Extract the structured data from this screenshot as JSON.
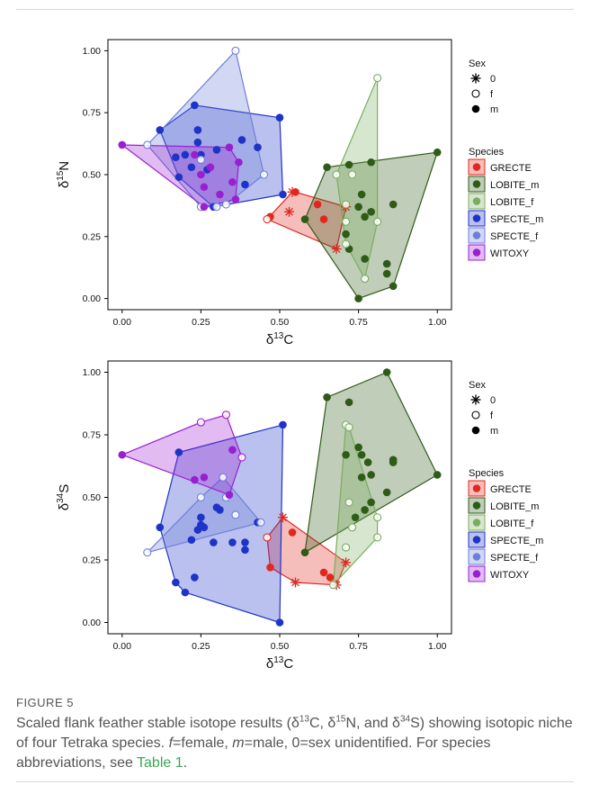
{
  "charts": [
    {
      "id": "top",
      "ylabel_base": "δ",
      "ylabel_sup": "15",
      "ylabel_elem": "N",
      "xlabel_base": "δ",
      "xlabel_sup": "13",
      "xlabel_elem": "C"
    },
    {
      "id": "bottom",
      "ylabel_base": "δ",
      "ylabel_sup": "34",
      "ylabel_elem": "S",
      "xlabel_base": "δ",
      "xlabel_sup": "13",
      "xlabel_elem": "C"
    }
  ],
  "x_ticks": [
    "0.00",
    "0.25",
    "0.50",
    "0.75",
    "1.00"
  ],
  "y_ticks": [
    "0.00",
    "0.25",
    "0.50",
    "0.75",
    "1.00"
  ],
  "legend": {
    "sex_title": "Sex",
    "sex_items": [
      {
        "symbol": "asterisk",
        "label": "0"
      },
      {
        "symbol": "open-circle",
        "label": "f"
      },
      {
        "symbol": "filled-circle",
        "label": "m"
      }
    ],
    "species_title": "Species",
    "species_items": [
      {
        "label": "GRECTE",
        "color": "#e0281e"
      },
      {
        "label": "LOBITE_m",
        "color": "#2e5b16"
      },
      {
        "label": "LOBITE_f",
        "color": "#79ad5e"
      },
      {
        "label": "SPECTE_m",
        "color": "#1e33c8"
      },
      {
        "label": "SPECTE_f",
        "color": "#6b7fd8"
      },
      {
        "label": "WITOXY",
        "color": "#9a1fd0"
      }
    ]
  },
  "chart_data": [
    {
      "type": "scatter",
      "xlabel": "δ13C",
      "ylabel": "δ15N",
      "xlim": [
        0,
        1
      ],
      "ylim": [
        0,
        1
      ],
      "series": [
        {
          "name": "GRECTE",
          "color": "#e0281e",
          "points": [
            [
              0.47,
              0.33,
              "m"
            ],
            [
              0.46,
              0.32,
              "f"
            ],
            [
              0.53,
              0.35,
              "0"
            ],
            [
              0.54,
              0.43,
              "0"
            ],
            [
              0.55,
              0.43,
              "m"
            ],
            [
              0.62,
              0.38,
              "m"
            ],
            [
              0.64,
              0.32,
              "m"
            ],
            [
              0.68,
              0.2,
              "0"
            ],
            [
              0.71,
              0.37,
              "0"
            ]
          ]
        },
        {
          "name": "LOBITE_m",
          "color": "#2e5b16",
          "points": [
            [
              0.58,
              0.32,
              "m"
            ],
            [
              0.65,
              0.53,
              "m"
            ],
            [
              0.72,
              0.54,
              "m"
            ],
            [
              0.71,
              0.26,
              "m"
            ],
            [
              0.72,
              0.2,
              "m"
            ],
            [
              0.75,
              0.37,
              "m"
            ],
            [
              0.76,
              0.42,
              "m"
            ],
            [
              0.77,
              0.33,
              "m"
            ],
            [
              0.77,
              0.16,
              "m"
            ],
            [
              0.79,
              0.55,
              "m"
            ],
            [
              0.79,
              0.35,
              "m"
            ],
            [
              0.84,
              0.14,
              "m"
            ],
            [
              0.84,
              0.1,
              "m"
            ],
            [
              0.86,
              0.38,
              "m"
            ],
            [
              0.86,
              0.05,
              "m"
            ],
            [
              1.0,
              0.59,
              "m"
            ],
            [
              0.75,
              0.0,
              "m"
            ]
          ]
        },
        {
          "name": "LOBITE_f",
          "color": "#79ad5e",
          "points": [
            [
              0.68,
              0.5,
              "f"
            ],
            [
              0.71,
              0.38,
              "f"
            ],
            [
              0.71,
              0.31,
              "f"
            ],
            [
              0.71,
              0.22,
              "f"
            ],
            [
              0.73,
              0.5,
              "f"
            ],
            [
              0.77,
              0.08,
              "f"
            ],
            [
              0.81,
              0.89,
              "f"
            ],
            [
              0.81,
              0.31,
              "f"
            ]
          ]
        },
        {
          "name": "SPECTE_m",
          "color": "#1e33c8",
          "points": [
            [
              0.12,
              0.68,
              "m"
            ],
            [
              0.17,
              0.57,
              "m"
            ],
            [
              0.18,
              0.49,
              "m"
            ],
            [
              0.2,
              0.58,
              "m"
            ],
            [
              0.22,
              0.53,
              "m"
            ],
            [
              0.23,
              0.78,
              "m"
            ],
            [
              0.24,
              0.68,
              "m"
            ],
            [
              0.24,
              0.63,
              "m"
            ],
            [
              0.25,
              0.58,
              "m"
            ],
            [
              0.27,
              0.52,
              "m"
            ],
            [
              0.29,
              0.37,
              "m"
            ],
            [
              0.3,
              0.6,
              "m"
            ],
            [
              0.38,
              0.64,
              "m"
            ],
            [
              0.39,
              0.46,
              "m"
            ],
            [
              0.43,
              0.61,
              "m"
            ],
            [
              0.5,
              0.73,
              "m"
            ],
            [
              0.51,
              0.42,
              "m"
            ]
          ]
        },
        {
          "name": "SPECTE_f",
          "color": "#6b7fd8",
          "points": [
            [
              0.08,
              0.62,
              "f"
            ],
            [
              0.25,
              0.37,
              "f"
            ],
            [
              0.25,
              0.56,
              "f"
            ],
            [
              0.3,
              0.37,
              "f"
            ],
            [
              0.33,
              0.38,
              "f"
            ],
            [
              0.36,
              1.0,
              "f"
            ],
            [
              0.45,
              0.5,
              "f"
            ]
          ]
        },
        {
          "name": "WITOXY",
          "color": "#9a1fd0",
          "points": [
            [
              0.0,
              0.62,
              "m"
            ],
            [
              0.23,
              0.58,
              "m"
            ],
            [
              0.25,
              0.5,
              "m"
            ],
            [
              0.26,
              0.45,
              "m"
            ],
            [
              0.26,
              0.37,
              "m"
            ],
            [
              0.28,
              0.53,
              "m"
            ],
            [
              0.31,
              0.42,
              "m"
            ],
            [
              0.34,
              0.61,
              "m"
            ],
            [
              0.35,
              0.47,
              "m"
            ],
            [
              0.36,
              0.4,
              "m"
            ],
            [
              0.37,
              0.55,
              "m"
            ]
          ]
        }
      ]
    },
    {
      "type": "scatter",
      "xlabel": "δ13C",
      "ylabel": "δ34S",
      "xlim": [
        0,
        1
      ],
      "ylim": [
        0,
        1
      ],
      "series": [
        {
          "name": "GRECTE",
          "color": "#e0281e",
          "points": [
            [
              0.46,
              0.34,
              "f"
            ],
            [
              0.47,
              0.22,
              "m"
            ],
            [
              0.51,
              0.42,
              "0"
            ],
            [
              0.54,
              0.36,
              "m"
            ],
            [
              0.55,
              0.16,
              "0"
            ],
            [
              0.64,
              0.2,
              "m"
            ],
            [
              0.66,
              0.18,
              "m"
            ],
            [
              0.68,
              0.15,
              "0"
            ],
            [
              0.71,
              0.24,
              "0"
            ]
          ]
        },
        {
          "name": "LOBITE_m",
          "color": "#2e5b16",
          "points": [
            [
              0.58,
              0.28,
              "m"
            ],
            [
              0.65,
              0.9,
              "m"
            ],
            [
              0.72,
              0.88,
              "m"
            ],
            [
              0.71,
              0.67,
              "m"
            ],
            [
              0.74,
              0.42,
              "m"
            ],
            [
              0.75,
              0.7,
              "m"
            ],
            [
              0.76,
              0.58,
              "m"
            ],
            [
              0.76,
              0.67,
              "m"
            ],
            [
              0.77,
              0.45,
              "m"
            ],
            [
              0.78,
              0.64,
              "m"
            ],
            [
              0.79,
              0.59,
              "m"
            ],
            [
              0.79,
              0.48,
              "m"
            ],
            [
              0.84,
              0.52,
              "m"
            ],
            [
              0.84,
              1.0,
              "m"
            ],
            [
              0.86,
              0.65,
              "m"
            ],
            [
              0.86,
              0.64,
              "m"
            ],
            [
              1.0,
              0.59,
              "m"
            ]
          ]
        },
        {
          "name": "LOBITE_f",
          "color": "#79ad5e",
          "points": [
            [
              0.67,
              0.15,
              "f"
            ],
            [
              0.71,
              0.79,
              "f"
            ],
            [
              0.71,
              0.3,
              "f"
            ],
            [
              0.72,
              0.48,
              "f"
            ],
            [
              0.72,
              0.78,
              "f"
            ],
            [
              0.73,
              0.38,
              "f"
            ],
            [
              0.81,
              0.42,
              "f"
            ],
            [
              0.81,
              0.34,
              "f"
            ]
          ]
        },
        {
          "name": "SPECTE_m",
          "color": "#1e33c8",
          "points": [
            [
              0.12,
              0.38,
              "m"
            ],
            [
              0.17,
              0.16,
              "m"
            ],
            [
              0.18,
              0.68,
              "m"
            ],
            [
              0.2,
              0.12,
              "m"
            ],
            [
              0.22,
              0.33,
              "m"
            ],
            [
              0.23,
              0.18,
              "m"
            ],
            [
              0.24,
              0.37,
              "m"
            ],
            [
              0.25,
              0.42,
              "m"
            ],
            [
              0.25,
              0.39,
              "m"
            ],
            [
              0.26,
              0.38,
              "m"
            ],
            [
              0.29,
              0.32,
              "m"
            ],
            [
              0.3,
              0.46,
              "m"
            ],
            [
              0.31,
              0.45,
              "m"
            ],
            [
              0.35,
              0.32,
              "m"
            ],
            [
              0.39,
              0.32,
              "m"
            ],
            [
              0.39,
              0.29,
              "m"
            ],
            [
              0.43,
              0.4,
              "m"
            ],
            [
              0.5,
              0.0,
              "m"
            ],
            [
              0.51,
              0.79,
              "m"
            ]
          ]
        },
        {
          "name": "SPECTE_f",
          "color": "#6b7fd8",
          "points": [
            [
              0.08,
              0.28,
              "f"
            ],
            [
              0.25,
              0.5,
              "f"
            ],
            [
              0.32,
              0.58,
              "f"
            ],
            [
              0.33,
              0.5,
              "f"
            ],
            [
              0.36,
              0.43,
              "f"
            ],
            [
              0.44,
              0.4,
              "f"
            ]
          ]
        },
        {
          "name": "WITOXY",
          "color": "#9a1fd0",
          "points": [
            [
              0.0,
              0.67,
              "m"
            ],
            [
              0.23,
              0.57,
              "m"
            ],
            [
              0.25,
              0.8,
              "f"
            ],
            [
              0.26,
              0.58,
              "m"
            ],
            [
              0.33,
              0.83,
              "f"
            ],
            [
              0.34,
              0.51,
              "m"
            ],
            [
              0.35,
              0.69,
              "m"
            ],
            [
              0.38,
              0.66,
              "f"
            ]
          ]
        }
      ]
    }
  ],
  "caption": {
    "label": "FIGURE 5",
    "text_before": "Scaled flank feather stable isotope results (δ",
    "sup1": "13",
    "text_mid1": "C, δ",
    "sup2": "15",
    "text_mid2": "N, and δ",
    "sup3": "34",
    "text_mid3": "S) showing isotopic niche of four Tetraka species. ",
    "f_italic": "f",
    "f_text": "=female, ",
    "m_italic": "m",
    "m_text": "=male, 0=sex unidentified. For species abbreviations, see ",
    "link": "Table 1",
    "end": "."
  }
}
